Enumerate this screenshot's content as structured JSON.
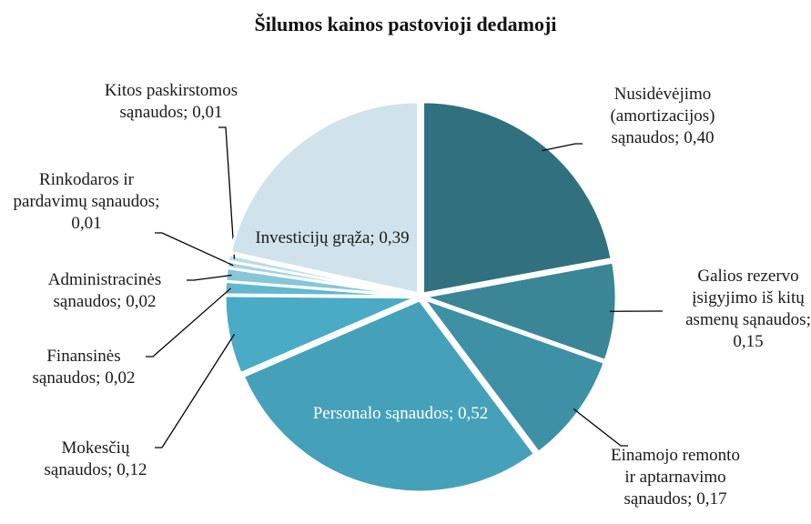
{
  "chart_data": {
    "type": "pie",
    "title": "Šilumos kainos pastovioji dedamoji",
    "values": [
      0.4,
      0.15,
      0.17,
      0.52,
      0.12,
      0.02,
      0.02,
      0.01,
      0.01,
      0.39
    ],
    "value_labels": [
      "Nusidėvėjimo (amortizacijos) sąnaudos; 0,40",
      "Galios rezervo įsigyjimo iš kitų asmenų sąnaudos; 0,15",
      "Einamojo remonto ir aptarnavimo sąnaudos; 0,17",
      "Personalo sąnaudos; 0,52",
      "Mokesčių sąnaudos; 0,12",
      "Finansinės sąnaudos; 0,02",
      "Administracinės sąnaudos; 0,02",
      "Rinkodaros ir pardavimų sąnaudos; 0,01",
      "Kitos paskirstomos sąnaudos; 0,01",
      "Investicijų grąža; 0,39"
    ],
    "colors": [
      "#31717f",
      "#3a8696",
      "#3e90a5",
      "#45a1b9",
      "#4aabc6",
      "#62b8d0",
      "#86c6d8",
      "#a7d2df",
      "#bddce6",
      "#d0e2eb"
    ]
  }
}
